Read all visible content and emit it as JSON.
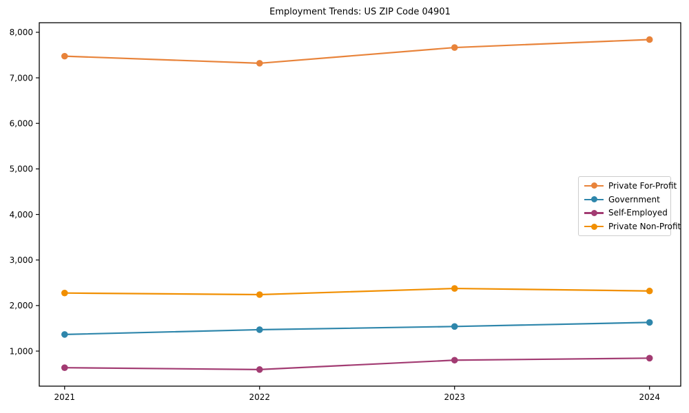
{
  "chart_data": {
    "type": "line",
    "title": "Employment Trends: US ZIP Code 04901",
    "xlabel": "",
    "ylabel": "",
    "x": [
      2021,
      2022,
      2023,
      2024
    ],
    "x_tick_labels": [
      "2021",
      "2022",
      "2023",
      "2024"
    ],
    "y_ticks": [
      1000,
      2000,
      3000,
      4000,
      5000,
      6000,
      7000,
      8000
    ],
    "y_tick_labels": [
      "1,000",
      "2,000",
      "3,000",
      "4,000",
      "5,000",
      "6,000",
      "7,000",
      "8,000"
    ],
    "ylim": [
      230,
      8210
    ],
    "xlim_years": [
      2020.87,
      2024.16
    ],
    "grid": false,
    "legend_position": "center right",
    "marker": "circle",
    "series": [
      {
        "name": "Private For-Profit",
        "color": "#E8833A",
        "values": [
          7475,
          7320,
          7665,
          7840
        ]
      },
      {
        "name": "Government",
        "color": "#2E86AB",
        "values": [
          1365,
          1470,
          1540,
          1630
        ]
      },
      {
        "name": "Self-Employed",
        "color": "#A23B72",
        "values": [
          635,
          595,
          800,
          845
        ]
      },
      {
        "name": "Private Non-Profit",
        "color": "#F18F01",
        "values": [
          2275,
          2240,
          2375,
          2320
        ]
      }
    ]
  }
}
